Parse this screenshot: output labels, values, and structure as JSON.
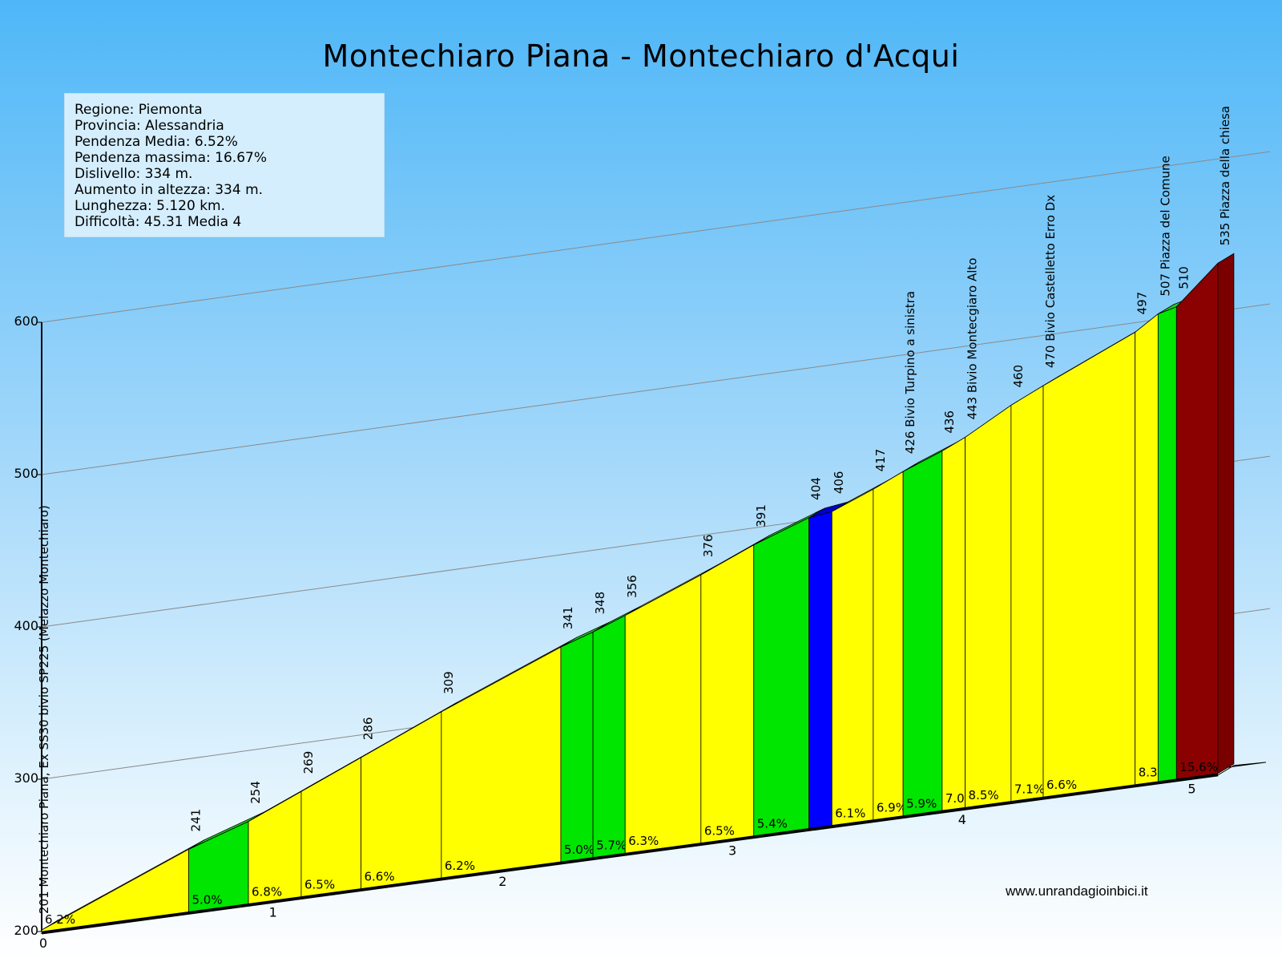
{
  "title": "Montechiaro Piana - Montechiaro d'Acqui",
  "info": {
    "regione": "Regione: Piemonta",
    "provincia": "Provincia: Alessandria",
    "pendenza_media": "Pendenza Media: 6.52%",
    "pendenza_massima": "Pendenza massima: 16.67%",
    "dislivello": "Dislivello:   334 m.",
    "aumento": "Aumento in altezza:   334 m.",
    "lunghezza": "Lunghezza:  5.120 km.",
    "difficolta": "Difficoltà: 45.31 Media 4"
  },
  "credit": "www.unrandagioinbici.it",
  "chart_data": {
    "type": "area",
    "title": "Montechiaro Piana - Montechiaro d'Acqui",
    "x_unit": "km",
    "y_ticks": [
      200,
      300,
      400,
      500,
      600
    ],
    "x_ticks": [
      0,
      1,
      2,
      3,
      4,
      5
    ],
    "ylim": [
      200,
      600
    ],
    "grid": true,
    "points": [
      {
        "km": 0.0,
        "alt": 201,
        "label": "201 Montechiaro Piana, Ex SS30 bivio SP225 (Melazzo Montechiaro)"
      },
      {
        "km": 0.64,
        "alt": 241,
        "label": "241"
      },
      {
        "km": 0.9,
        "alt": 254,
        "label": "254"
      },
      {
        "km": 1.13,
        "alt": 269,
        "label": "269"
      },
      {
        "km": 1.39,
        "alt": 286,
        "label": "286"
      },
      {
        "km": 1.74,
        "alt": 309,
        "label": "309"
      },
      {
        "km": 2.26,
        "alt": 341,
        "label": "341"
      },
      {
        "km": 2.4,
        "alt": 348,
        "label": "348"
      },
      {
        "km": 2.54,
        "alt": 356,
        "label": "356"
      },
      {
        "km": 2.87,
        "alt": 376,
        "label": "376"
      },
      {
        "km": 3.1,
        "alt": 391,
        "label": "391"
      },
      {
        "km": 3.34,
        "alt": 404,
        "label": "404"
      },
      {
        "km": 3.44,
        "alt": 406,
        "label": "406"
      },
      {
        "km": 3.62,
        "alt": 417,
        "label": "417"
      },
      {
        "km": 3.75,
        "alt": 426,
        "label": "426 Bivio Turpino a sinistra"
      },
      {
        "km": 3.92,
        "alt": 436,
        "label": "436"
      },
      {
        "km": 4.02,
        "alt": 443,
        "label": "443 Bivio Montecgiaro Alto"
      },
      {
        "km": 4.22,
        "alt": 460,
        "label": "460"
      },
      {
        "km": 4.36,
        "alt": 470,
        "label": "470 Bivio Castelletto Erro Dx"
      },
      {
        "km": 4.76,
        "alt": 497,
        "label": "497"
      },
      {
        "km": 4.86,
        "alt": 507,
        "label": "507 Piazza del Comune"
      },
      {
        "km": 4.94,
        "alt": 510,
        "label": "510"
      },
      {
        "km": 5.12,
        "alt": 535,
        "label": "535 Piazza della chiesa"
      }
    ],
    "segments": [
      {
        "grade": "6.2%",
        "color": "yellow"
      },
      {
        "grade": "5.0%",
        "color": "green"
      },
      {
        "grade": "6.8%",
        "color": "yellow"
      },
      {
        "grade": "6.5%",
        "color": "yellow"
      },
      {
        "grade": "6.6%",
        "color": "yellow"
      },
      {
        "grade": "6.2%",
        "color": "yellow"
      },
      {
        "grade": "5.0%",
        "color": "green"
      },
      {
        "grade": "5.7%",
        "color": "green"
      },
      {
        "grade": "6.3%",
        "color": "yellow"
      },
      {
        "grade": "6.5%",
        "color": "yellow"
      },
      {
        "grade": "5.4%",
        "color": "green"
      },
      {
        "grade": "",
        "color": "blue"
      },
      {
        "grade": "6.1%",
        "color": "yellow"
      },
      {
        "grade": "6.9%",
        "color": "yellow"
      },
      {
        "grade": "5.9%",
        "color": "green"
      },
      {
        "grade": "7.0%",
        "color": "yellow"
      },
      {
        "grade": "8.5%",
        "color": "yellow"
      },
      {
        "grade": "7.1%",
        "color": "yellow"
      },
      {
        "grade": "6.6%",
        "color": "yellow"
      },
      {
        "grade": "8.3%",
        "color": "yellow"
      },
      {
        "grade": "",
        "color": "green"
      },
      {
        "grade": "15.6%",
        "color": "darkred"
      }
    ],
    "colors": {
      "yellow": "#ffff00",
      "green": "#00e600",
      "blue": "#0000ff",
      "darkred": "#8b0000",
      "top_yellow": "#f2f24a",
      "top_green": "#22cc22",
      "top_blue": "#0000cc",
      "top_darkred": "#7a0000"
    }
  }
}
